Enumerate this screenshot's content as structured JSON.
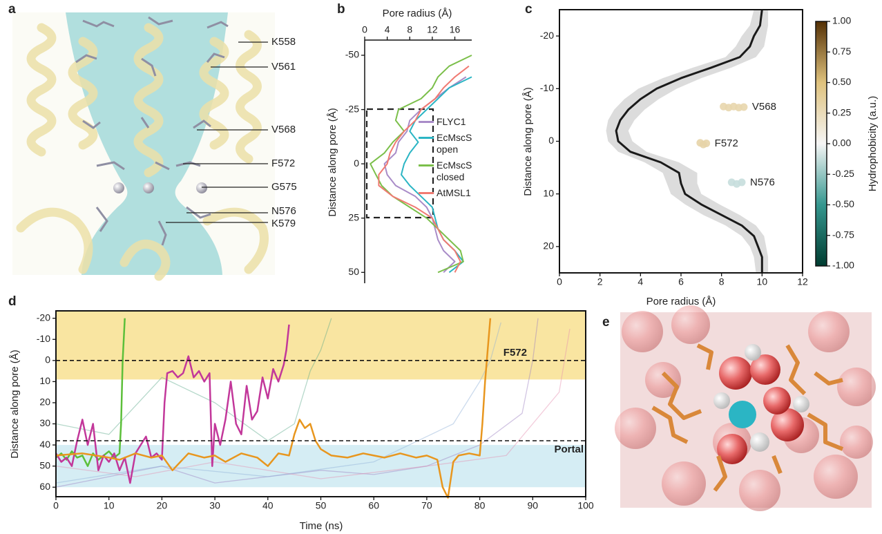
{
  "panel_a": {
    "label": "a",
    "residues": [
      "K558",
      "V561",
      "V568",
      "F572",
      "G575",
      "N576",
      "K579"
    ]
  },
  "panel_e": {
    "label": "e"
  },
  "chart_data": [
    {
      "type": "line",
      "label": "b",
      "orientation": "vertical",
      "y_inverted": true,
      "xlabel": "Pore radius (Å)",
      "ylabel": "Distance along pore (Å)",
      "xlim": [
        0,
        19
      ],
      "xticks": [
        0,
        4,
        8,
        12,
        16
      ],
      "ylim": [
        -57,
        55
      ],
      "yticks": [
        -50,
        -25,
        0,
        25,
        50
      ],
      "y": [
        -50,
        -45,
        -40,
        -35,
        -30,
        -25,
        -20,
        -15,
        -10,
        -5,
        0,
        5,
        10,
        15,
        20,
        25,
        30,
        35,
        40,
        45,
        50
      ],
      "series": [
        {
          "name": "FLYC1",
          "color": "#a98cc8",
          "values": [
            null,
            null,
            18,
            15,
            12.5,
            10,
            8,
            7.5,
            6,
            5.5,
            3.5,
            4,
            5.5,
            9,
            11,
            12,
            12.5,
            13,
            14,
            16,
            14
          ]
        },
        {
          "name": "EcMscS open",
          "color": "#2bb5c4",
          "values": [
            null,
            null,
            19,
            15,
            13,
            11,
            9,
            8,
            9.5,
            8,
            7,
            6.5,
            8,
            10,
            12,
            12.5,
            13,
            14,
            16,
            17.5,
            15
          ]
        },
        {
          "name": "EcMscS closed",
          "color": "#7bbf4a",
          "values": [
            19,
            15,
            13,
            12,
            10,
            6,
            5.5,
            7,
            5,
            3.5,
            1,
            2,
            3,
            5,
            8,
            11,
            13,
            15,
            17,
            17.5,
            13
          ]
        },
        {
          "name": "AtMSL1",
          "color": "#f07a72",
          "values": [
            null,
            18.5,
            16,
            14,
            12.5,
            10,
            9,
            7,
            5.5,
            4.5,
            4,
            2.5,
            2.5,
            5,
            9,
            12,
            13,
            14,
            16,
            17,
            16
          ]
        }
      ]
    },
    {
      "type": "line",
      "label": "c",
      "orientation": "vertical",
      "y_inverted": true,
      "xlabel": "Pore radius (Å)",
      "ylabel": "Distance along pore (Å)",
      "xlim": [
        0,
        12
      ],
      "xticks": [
        0,
        2,
        4,
        6,
        8,
        10,
        12
      ],
      "ylim": [
        -25,
        25
      ],
      "yticks": [
        -20,
        -10,
        0,
        10,
        20
      ],
      "y": [
        -25,
        -22,
        -20,
        -18,
        -16,
        -14,
        -12,
        -10,
        -8,
        -6,
        -4,
        -2,
        0,
        2,
        4,
        6,
        8,
        10,
        12,
        14,
        16,
        18,
        20,
        22,
        25
      ],
      "band": {
        "color": "#dcdcdc",
        "lower": [
          9.6,
          9.4,
          9,
          8.7,
          8.2,
          6.6,
          5.1,
          3.9,
          3.2,
          2.7,
          2.4,
          2.3,
          2.4,
          2.9,
          4.2,
          5.1,
          5.3,
          5.5,
          6.2,
          7.1,
          8.2,
          9,
          9.4,
          9.6,
          9.7
        ],
        "upper": [
          10.3,
          10.3,
          10.2,
          10.1,
          9.7,
          8.5,
          7,
          5.8,
          4.9,
          4.2,
          3.7,
          3.4,
          3.6,
          4.3,
          5.9,
          6.8,
          6.8,
          7,
          7.9,
          8.9,
          9.7,
          10.1,
          10.2,
          10.3,
          10.3
        ]
      },
      "series": [
        {
          "color": "#1a1a1a",
          "values": [
            10,
            9.9,
            9.6,
            9.4,
            8.9,
            7.5,
            6,
            4.8,
            4,
            3.4,
            3,
            2.8,
            2.9,
            3.5,
            5,
            5.9,
            6,
            6.2,
            7,
            8,
            9,
            9.6,
            9.8,
            10,
            10
          ]
        }
      ],
      "clusters": [
        {
          "label": "V568",
          "x": [
            8.1,
            8.35,
            8.6,
            8.85,
            9.1
          ],
          "y": [
            -6.6,
            -6.4,
            -6.6,
            -6.4,
            -6.5
          ],
          "hydrophobicity": 0.3
        },
        {
          "label": "F572",
          "x": [
            6.95,
            7.1,
            7.25
          ],
          "y": [
            0.3,
            0.6,
            0.4
          ],
          "hydrophobicity": 0.32
        },
        {
          "label": "N576",
          "x": [
            8.5,
            8.75,
            9.0
          ],
          "y": [
            7.8,
            8.1,
            7.8
          ],
          "hydrophobicity": -0.12
        }
      ],
      "colorbar": {
        "label": "Hydrophobicity (a.u.)",
        "lim": [
          -1,
          1
        ],
        "colors": [
          "#003c30",
          "#35978f",
          "#f5f5f5",
          "#dfc27d",
          "#543005"
        ],
        "ticks": [
          {
            "value": 1,
            "label": "1.00"
          },
          {
            "value": 0.75,
            "label": "0.75"
          },
          {
            "value": 0.5,
            "label": "0.50"
          },
          {
            "value": 0.25,
            "label": "0.25"
          },
          {
            "value": 0,
            "label": "0.00"
          },
          {
            "value": -0.25,
            "label": "-0.25"
          },
          {
            "value": -0.5,
            "label": "-0.50"
          },
          {
            "value": -0.75,
            "label": "-0.75"
          },
          {
            "value": -1,
            "label": "-1.00"
          }
        ]
      }
    },
    {
      "type": "line",
      "label": "d",
      "orientation": "horizontal",
      "y_inverted": true,
      "xlabel": "Time (ns)",
      "ylabel": "Distance along pore (Å)",
      "xlim": [
        0,
        100
      ],
      "xticks": [
        0,
        10,
        20,
        30,
        40,
        50,
        60,
        70,
        80,
        90,
        100
      ],
      "ylim": [
        -23.5,
        64.5
      ],
      "yticks": [
        -20,
        -10,
        0,
        10,
        20,
        30,
        40,
        50,
        60
      ],
      "regions": [
        {
          "ylim": [
            -23.5,
            9
          ],
          "color": "#f8df8a"
        },
        {
          "ylim": [
            40,
            60
          ],
          "color": "#cbe9f1"
        }
      ],
      "annotations": [
        {
          "label": "F572",
          "y": 0
        },
        {
          "label": "Portal",
          "y": 38
        }
      ],
      "series": [
        {
          "color": "#9b7fc0",
          "opacity": 0.45,
          "x": [
            0,
            10,
            20,
            30,
            40,
            50,
            60,
            70,
            80,
            88,
            90,
            91
          ],
          "values": [
            60,
            55,
            50,
            58,
            55,
            52,
            54,
            50,
            40,
            25,
            0,
            -20
          ]
        },
        {
          "color": "#5aa88a",
          "opacity": 0.45,
          "x": [
            0,
            10,
            20,
            30,
            40,
            45,
            48,
            50,
            52
          ],
          "values": [
            30,
            35,
            8,
            20,
            38,
            30,
            5,
            -5,
            -20
          ]
        },
        {
          "color": "#e58fb0",
          "opacity": 0.45,
          "x": [
            0,
            15,
            30,
            50,
            70,
            85,
            95,
            96,
            97
          ],
          "values": [
            50,
            55,
            48,
            56,
            50,
            45,
            15,
            0,
            -15
          ]
        },
        {
          "color": "#8fb0d8",
          "opacity": 0.45,
          "x": [
            0,
            20,
            40,
            60,
            75,
            80,
            82,
            84
          ],
          "values": [
            58,
            50,
            55,
            48,
            30,
            10,
            0,
            -18
          ]
        },
        {
          "color": "#5cbf3a",
          "opacity": 1,
          "x": [
            0,
            1,
            2,
            3,
            4,
            5,
            6,
            7,
            8,
            9,
            10,
            11,
            12,
            12.3,
            12.6,
            13
          ],
          "values": [
            46,
            44,
            47,
            43,
            46,
            45,
            50,
            44,
            47,
            45,
            43,
            46,
            44,
            30,
            0,
            -20
          ]
        },
        {
          "color": "#c2379a",
          "opacity": 1,
          "x": [
            0,
            1,
            2,
            3,
            4,
            5,
            6,
            7,
            8,
            9,
            10,
            11,
            12,
            13,
            14,
            15,
            16,
            17,
            18,
            19,
            20,
            20.5,
            21,
            22,
            23,
            24,
            25,
            26,
            27,
            28,
            29,
            29.5,
            30,
            31,
            32,
            33,
            34,
            35,
            36,
            37,
            38,
            39,
            40,
            41,
            42,
            43,
            43.5,
            44
          ],
          "values": [
            44,
            48,
            46,
            50,
            38,
            28,
            40,
            30,
            52,
            45,
            48,
            44,
            52,
            46,
            58,
            44,
            40,
            36,
            46,
            44,
            47,
            20,
            6,
            5,
            8,
            6,
            -2,
            8,
            5,
            10,
            6,
            50,
            30,
            40,
            28,
            10,
            30,
            35,
            12,
            28,
            24,
            8,
            18,
            4,
            10,
            2,
            -5,
            -17
          ]
        },
        {
          "color": "#e8961e",
          "opacity": 1,
          "x": [
            0,
            5,
            10,
            12,
            15,
            18,
            20,
            22,
            25,
            28,
            30,
            32,
            35,
            38,
            40,
            42,
            44,
            45,
            46,
            47,
            48,
            49,
            50,
            52,
            55,
            58,
            60,
            62,
            65,
            68,
            70,
            72,
            73,
            74,
            75,
            76,
            78,
            80,
            80.5,
            81,
            82
          ],
          "values": [
            45,
            44,
            46,
            47,
            44,
            46,
            45,
            52,
            44,
            46,
            45,
            48,
            44,
            46,
            50,
            44,
            45,
            35,
            28,
            32,
            30,
            38,
            42,
            45,
            46,
            44,
            45,
            46,
            44,
            46,
            45,
            47,
            60,
            65,
            48,
            45,
            44,
            45,
            30,
            10,
            -20
          ]
        }
      ]
    }
  ]
}
